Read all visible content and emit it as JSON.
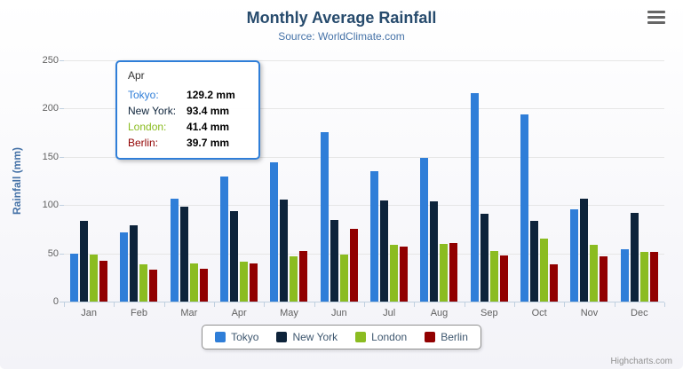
{
  "chart_data": {
    "type": "bar",
    "title": "Monthly Average Rainfall",
    "subtitle": "Source: WorldClimate.com",
    "xlabel": "",
    "ylabel": "Rainfall (mm)",
    "ylim": [
      0,
      250
    ],
    "yticks": [
      0,
      50,
      100,
      150,
      200,
      250
    ],
    "grid": true,
    "legend_position": "bottom",
    "categories": [
      "Jan",
      "Feb",
      "Mar",
      "Apr",
      "May",
      "Jun",
      "Jul",
      "Aug",
      "Sep",
      "Oct",
      "Nov",
      "Dec"
    ],
    "series": [
      {
        "name": "Tokyo",
        "color": "#2f7ed8",
        "values": [
          49.9,
          71.5,
          106.4,
          129.2,
          144.0,
          176.0,
          135.6,
          148.5,
          216.4,
          194.1,
          95.6,
          54.4
        ]
      },
      {
        "name": "New York",
        "color": "#0d233a",
        "values": [
          83.6,
          78.8,
          98.5,
          93.4,
          106.0,
          84.5,
          105.0,
          104.3,
          91.2,
          83.5,
          106.6,
          92.3
        ]
      },
      {
        "name": "London",
        "color": "#8bbc21",
        "values": [
          48.9,
          38.8,
          39.3,
          41.4,
          47.0,
          48.3,
          59.0,
          59.6,
          52.4,
          65.2,
          59.3,
          51.2
        ]
      },
      {
        "name": "Berlin",
        "color": "#910000",
        "values": [
          42.4,
          33.2,
          34.5,
          39.7,
          52.6,
          75.5,
          57.4,
          60.4,
          47.6,
          39.1,
          46.8,
          51.1
        ]
      }
    ]
  },
  "tooltip": {
    "category": "Apr",
    "border_color": "#2f7ed8",
    "rows": [
      {
        "label": "Tokyo:",
        "value": "129.2 mm",
        "color": "#2f7ed8"
      },
      {
        "label": "New York:",
        "value": "93.4 mm",
        "color": "#0d233a"
      },
      {
        "label": "London:",
        "value": "41.4 mm",
        "color": "#8bbc21"
      },
      {
        "label": "Berlin:",
        "value": "39.7 mm",
        "color": "#910000"
      }
    ]
  },
  "icons": {
    "export_menu": "hamburger"
  },
  "credits": "Highcharts.com"
}
